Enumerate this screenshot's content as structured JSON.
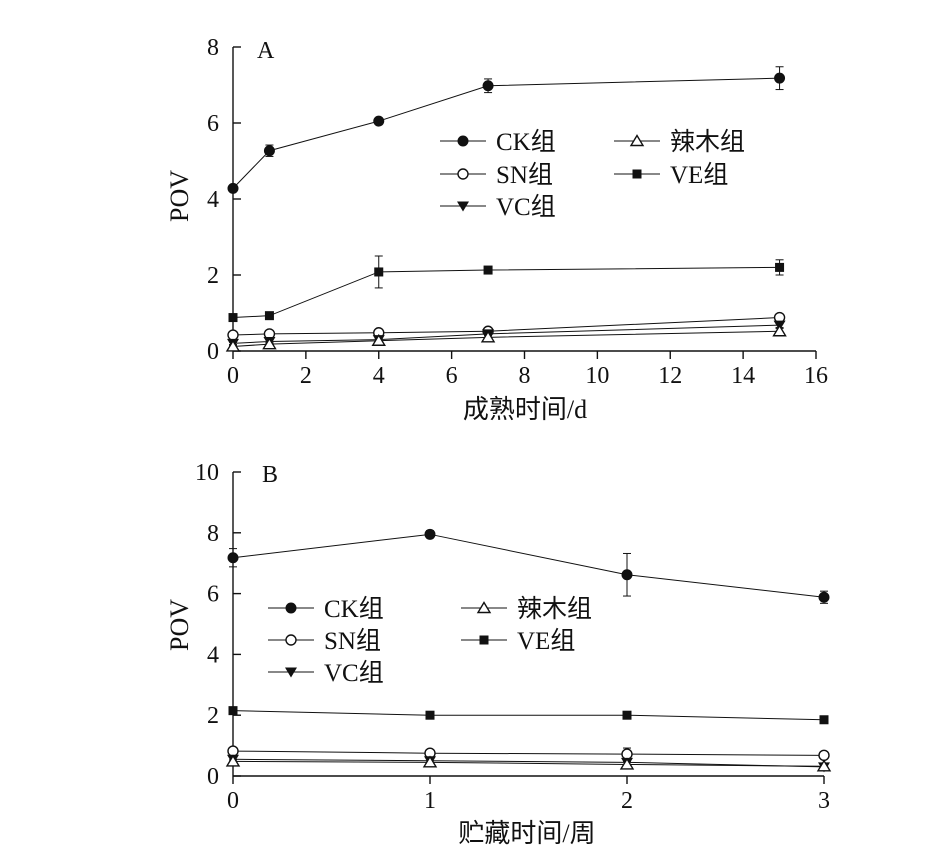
{
  "chart_data": [
    {
      "panel": "A",
      "type": "line",
      "xlabel": "成熟时间/d",
      "ylabel": "POV",
      "xlim": [
        0,
        16
      ],
      "ylim": [
        0,
        8
      ],
      "xticks": [
        0,
        2,
        4,
        6,
        8,
        10,
        12,
        14,
        16
      ],
      "yticks": [
        0,
        2,
        4,
        6,
        8
      ],
      "grid": false,
      "legend_position": "center-right",
      "x": [
        0,
        1,
        4,
        7,
        15
      ],
      "series": [
        {
          "name": "CK组",
          "marker": "circle-filled",
          "values": [
            4.28,
            5.27,
            6.05,
            6.98,
            7.18
          ],
          "errors": [
            0.08,
            0.15,
            0.08,
            0.18,
            0.3
          ]
        },
        {
          "name": "SN组",
          "marker": "circle-open",
          "values": [
            0.42,
            0.45,
            0.48,
            0.52,
            0.88
          ],
          "errors": [
            0.04,
            0.05,
            0.05,
            0.05,
            0.08
          ]
        },
        {
          "name": "VC组",
          "marker": "triangle-down-filled",
          "values": [
            0.2,
            0.25,
            0.3,
            0.45,
            0.68
          ],
          "errors": [
            0.03,
            0.04,
            0.05,
            0.05,
            0.06
          ]
        },
        {
          "name": "辣木组",
          "marker": "triangle-up-open",
          "values": [
            0.12,
            0.18,
            0.27,
            0.36,
            0.52
          ],
          "errors": [
            0.03,
            0.04,
            0.05,
            0.1,
            0.07
          ]
        },
        {
          "name": "VE组",
          "marker": "square-filled",
          "values": [
            0.88,
            0.93,
            2.08,
            2.13,
            2.2
          ],
          "errors": [
            0.06,
            0.07,
            0.42,
            0.08,
            0.2
          ]
        }
      ]
    },
    {
      "panel": "B",
      "type": "line",
      "xlabel": "贮藏时间/周",
      "ylabel": "POV",
      "xlim": [
        0,
        3
      ],
      "ylim": [
        0,
        10
      ],
      "xticks": [
        0,
        1,
        2,
        3
      ],
      "yticks": [
        0,
        2,
        4,
        6,
        8,
        10
      ],
      "grid": false,
      "legend_position": "center-left",
      "x": [
        0,
        1,
        2,
        3
      ],
      "series": [
        {
          "name": "CK组",
          "marker": "circle-filled",
          "values": [
            7.18,
            7.95,
            6.62,
            5.88
          ],
          "errors": [
            0.3,
            0.12,
            0.7,
            0.2
          ]
        },
        {
          "name": "SN组",
          "marker": "circle-open",
          "values": [
            0.82,
            0.75,
            0.72,
            0.68
          ],
          "errors": [
            0.1,
            0.08,
            0.2,
            0.12
          ]
        },
        {
          "name": "VC组",
          "marker": "triangle-down-filled",
          "values": [
            0.55,
            0.5,
            0.45,
            0.3
          ],
          "errors": [
            0.08,
            0.12,
            0.12,
            0.06
          ]
        },
        {
          "name": "辣木组",
          "marker": "triangle-up-open",
          "values": [
            0.48,
            0.45,
            0.38,
            0.32
          ],
          "errors": [
            0.05,
            0.05,
            0.08,
            0.06
          ]
        },
        {
          "name": "VE组",
          "marker": "square-filled",
          "values": [
            2.15,
            2.0,
            2.0,
            1.85
          ],
          "errors": [
            0.12,
            0.08,
            0.08,
            0.06
          ]
        }
      ]
    }
  ]
}
